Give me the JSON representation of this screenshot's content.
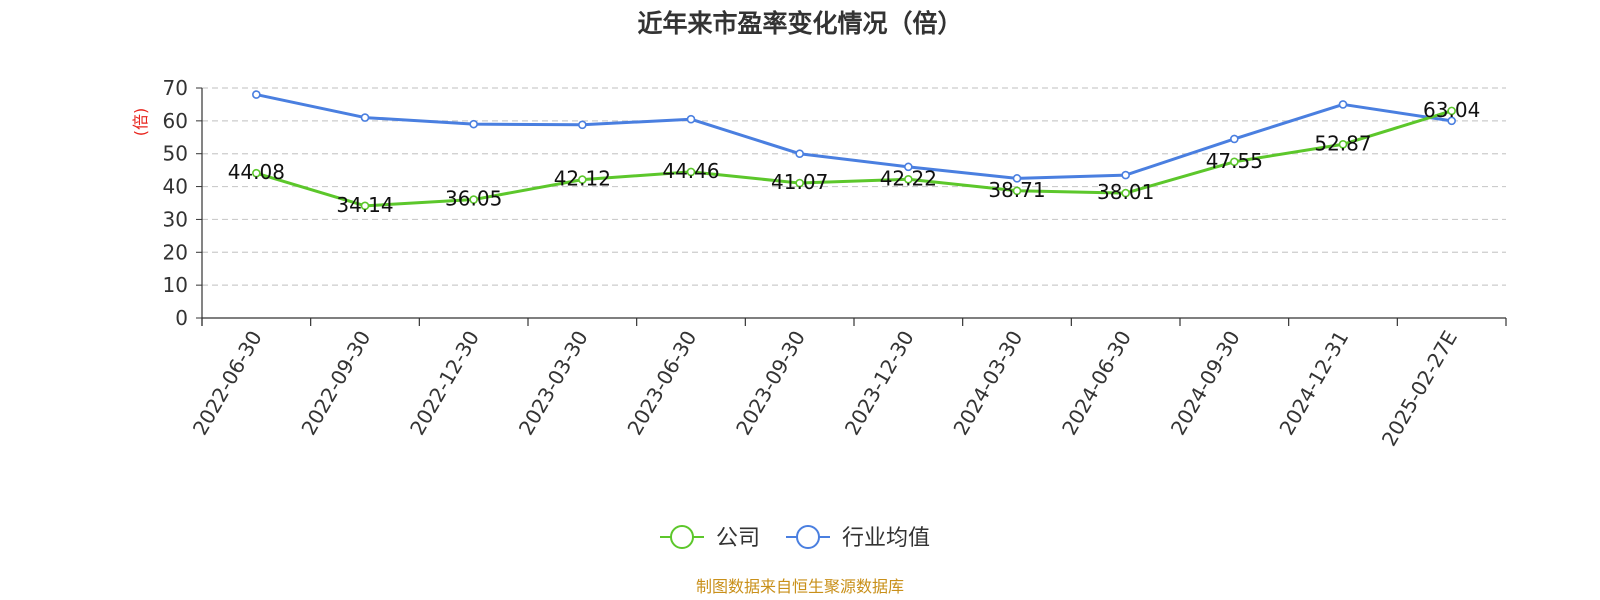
{
  "colors": {
    "company": "#5cc72b",
    "industry": "#4a7fe0",
    "ylabel": "#e8241c",
    "source": "#c9901a",
    "grid": "#cccccc",
    "axis": "#333333"
  },
  "source_note": "制图数据来自恒生聚源数据库",
  "chart_data": {
    "type": "line",
    "title": "近年来市盈率变化情况（倍）",
    "ylabel": "(倍)",
    "xlabel": "",
    "ylim": [
      0,
      70
    ],
    "yticks": [
      0,
      10,
      20,
      30,
      40,
      50,
      60,
      70
    ],
    "grid": true,
    "legend_position": "bottom-center",
    "categories": [
      "2022-06-30",
      "2022-09-30",
      "2022-12-30",
      "2023-03-30",
      "2023-06-30",
      "2023-09-30",
      "2023-12-30",
      "2024-03-30",
      "2024-06-30",
      "2024-09-30",
      "2024-12-31",
      "2025-02-27E"
    ],
    "series": [
      {
        "name": "公司",
        "color": "#5cc72b",
        "values": [
          44.08,
          34.14,
          36.05,
          42.12,
          44.46,
          41.07,
          42.22,
          38.71,
          38.01,
          47.55,
          52.87,
          63.04
        ],
        "labels": [
          "44.08",
          "34.14",
          "36.05",
          "42.12",
          "44.46",
          "41.07",
          "42.22",
          "38.71",
          "38.01",
          "47.55",
          "52.87",
          "63.04"
        ]
      },
      {
        "name": "行业均值",
        "color": "#4a7fe0",
        "values": [
          68.0,
          61.0,
          59.0,
          58.8,
          60.5,
          50.0,
          46.0,
          42.5,
          43.5,
          54.5,
          65.0,
          60.0
        ]
      }
    ]
  }
}
